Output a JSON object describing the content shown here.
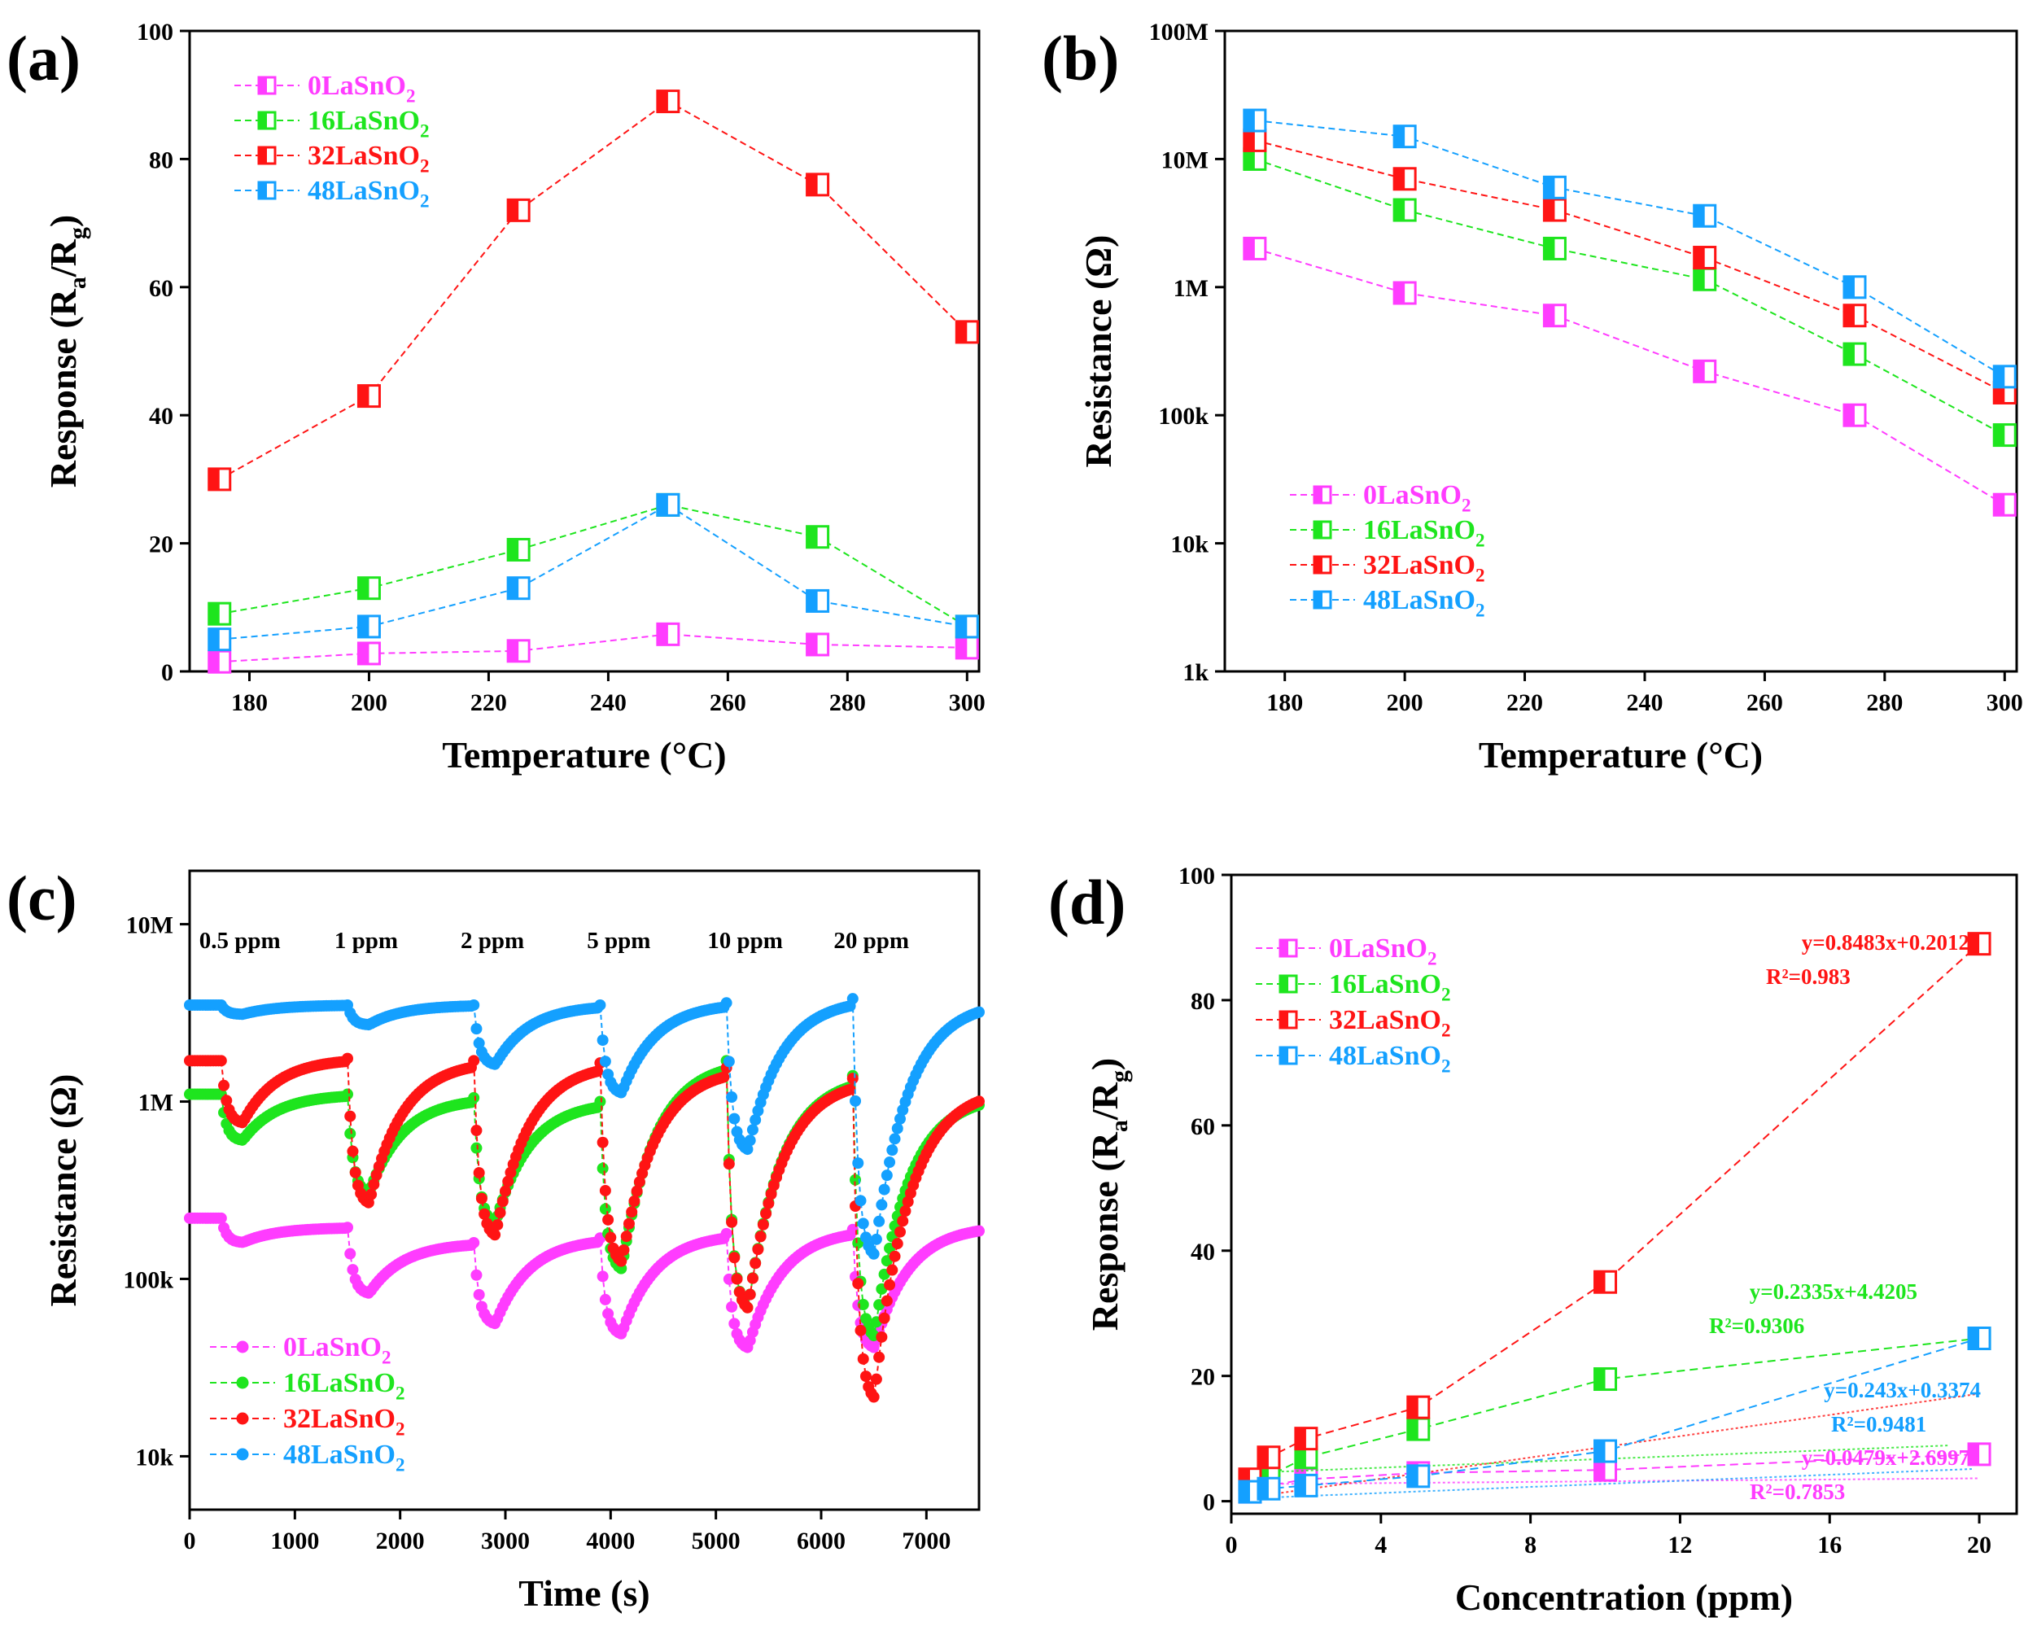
{
  "colors": {
    "p0": "#ff3cff",
    "p16": "#1ee51e",
    "p32": "#ff1414",
    "p48": "#14a0ff",
    "axis": "#000000"
  },
  "series_names": [
    "0LaSnO2",
    "16LaSnO2",
    "32LaSnO2",
    "48LaSnO2"
  ],
  "chart_data": [
    {
      "id": "a",
      "panel_label": "(a)",
      "type": "line",
      "xlabel": "Temperature (°C)",
      "ylabel": "Response (Ra/Rg)",
      "xlim": [
        170,
        302
      ],
      "ylim": [
        0,
        100
      ],
      "xticks": [
        180,
        200,
        220,
        240,
        260,
        280,
        300
      ],
      "yticks": [
        0,
        20,
        40,
        60,
        80,
        100
      ],
      "ytick_labels": [
        "0",
        "20",
        "40",
        "60",
        "80",
        "100"
      ],
      "legend_position": "top-left",
      "x": [
        175,
        200,
        225,
        250,
        275,
        300
      ],
      "series": [
        {
          "name": "0LaSnO2",
          "color": "#ff3cff",
          "values": [
            1.5,
            2.8,
            3.2,
            5.8,
            4.2,
            3.7
          ]
        },
        {
          "name": "16LaSnO2",
          "color": "#1ee51e",
          "values": [
            9,
            13,
            19,
            26,
            21,
            7
          ]
        },
        {
          "name": "32LaSnO2",
          "color": "#ff1414",
          "values": [
            30,
            43,
            72,
            89,
            76,
            53
          ]
        },
        {
          "name": "48LaSnO2",
          "color": "#14a0ff",
          "values": [
            5,
            7,
            13,
            26,
            11,
            7
          ]
        }
      ]
    },
    {
      "id": "b",
      "panel_label": "(b)",
      "type": "line",
      "xlabel": "Temperature (°C)",
      "ylabel": "Resistance (Ω)",
      "yscale": "log",
      "xlim": [
        170,
        302
      ],
      "ylim": [
        1000,
        100000000
      ],
      "xticks": [
        180,
        200,
        220,
        240,
        260,
        280,
        300
      ],
      "yticks": [
        1000,
        10000,
        100000,
        1000000,
        10000000,
        100000000
      ],
      "ytick_labels": [
        "1k",
        "10k",
        "100k",
        "1M",
        "10M",
        "100M"
      ],
      "legend_position": "bottom-left",
      "x": [
        175,
        200,
        225,
        250,
        275,
        300
      ],
      "series": [
        {
          "name": "0LaSnO2",
          "color": "#ff3cff",
          "values": [
            2000000,
            900000,
            600000,
            220000,
            100000,
            20000
          ]
        },
        {
          "name": "16LaSnO2",
          "color": "#1ee51e",
          "values": [
            10000000,
            4000000,
            2000000,
            1150000,
            300000,
            70000
          ]
        },
        {
          "name": "32LaSnO2",
          "color": "#ff1414",
          "values": [
            14000000,
            7000000,
            4000000,
            1700000,
            600000,
            150000
          ]
        },
        {
          "name": "48LaSnO2",
          "color": "#14a0ff",
          "values": [
            20000000,
            15000000,
            6000000,
            3600000,
            1000000,
            200000
          ]
        }
      ]
    },
    {
      "id": "c",
      "panel_label": "(c)",
      "type": "line",
      "xlabel": "Time (s)",
      "ylabel": "Resistance (Ω)",
      "yscale": "log",
      "xlim": [
        0,
        7500
      ],
      "ylim": [
        5000,
        20000000
      ],
      "xticks": [
        0,
        1000,
        2000,
        3000,
        4000,
        5000,
        6000,
        7000
      ],
      "yticks": [
        10000,
        100000,
        1000000,
        10000000
      ],
      "ytick_labels": [
        "10k",
        "100k",
        "1M",
        "10M"
      ],
      "legend_position": "bottom-left",
      "pulses": [
        {
          "label": "0.5 ppm",
          "start": 300,
          "end": 500
        },
        {
          "label": "1 ppm",
          "start": 1500,
          "end": 1700
        },
        {
          "label": "2 ppm",
          "start": 2700,
          "end": 2900
        },
        {
          "label": "5 ppm",
          "start": 3900,
          "end": 4100
        },
        {
          "label": "10 ppm",
          "start": 5100,
          "end": 5300
        },
        {
          "label": "20 ppm",
          "start": 6300,
          "end": 6500
        }
      ],
      "series": [
        {
          "name": "0LaSnO2",
          "color": "#ff3cff",
          "baselines": [
            220000,
            195000,
            160000,
            170000,
            180000,
            190000,
            200000
          ],
          "minima": [
            160000,
            82000,
            55000,
            48000,
            40000,
            40000
          ]
        },
        {
          "name": "16LaSnO2",
          "color": "#1ee51e",
          "baselines": [
            1100000,
            1100000,
            1050000,
            1000000,
            1700000,
            1400000,
            1100000
          ],
          "minima": [
            600000,
            300000,
            200000,
            110000,
            65000,
            45000
          ]
        },
        {
          "name": "32LaSnO2",
          "color": "#ff1414",
          "baselines": [
            1700000,
            1750000,
            1700000,
            1650000,
            1550000,
            1350000,
            1200000
          ],
          "minima": [
            750000,
            260000,
            170000,
            120000,
            65000,
            20000
          ]
        },
        {
          "name": "48LaSnO2",
          "color": "#14a0ff",
          "baselines": [
            3500000,
            3500000,
            3500000,
            3500000,
            3600000,
            3800000,
            3700000
          ],
          "minima": [
            3100000,
            2700000,
            1600000,
            1100000,
            520000,
            130000
          ]
        }
      ]
    },
    {
      "id": "d",
      "panel_label": "(d)",
      "type": "scatter",
      "xlabel": "Concentration (ppm)",
      "ylabel": "Response (Ra/Rg)",
      "xlim": [
        0,
        21
      ],
      "ylim": [
        -2,
        100
      ],
      "xticks": [
        0,
        4,
        8,
        12,
        16,
        20
      ],
      "yticks": [
        0,
        20,
        40,
        60,
        80,
        100
      ],
      "ytick_labels": [
        "0",
        "20",
        "40",
        "60",
        "80",
        "100"
      ],
      "legend_position": "top-left",
      "x": [
        0.5,
        1,
        2,
        5,
        10,
        20
      ],
      "series": [
        {
          "name": "0LaSnO2",
          "color": "#ff3cff",
          "values": [
            1.5,
            2.5,
            3.5,
            4.5,
            5,
            7.5
          ],
          "fit_slope": 0.0479,
          "fit_intercept": 2.6997,
          "equation": "y=0.0479x+2.6997",
          "r2": "R²=0.7853"
        },
        {
          "name": "16LaSnO2",
          "color": "#1ee51e",
          "values": [
            3,
            4,
            7,
            11.5,
            19.5,
            26
          ],
          "fit_slope": 0.2335,
          "fit_intercept": 4.4205,
          "equation": "y=0.2335x+4.4205",
          "r2": "R²=0.9306"
        },
        {
          "name": "32LaSnO2",
          "color": "#ff1414",
          "values": [
            3.5,
            7,
            10,
            15,
            35,
            89
          ],
          "fit_slope": 0.8483,
          "fit_intercept": 0.2012,
          "equation": "y=0.8483x+0.2012",
          "r2": "R²=0.983"
        },
        {
          "name": "48LaSnO2",
          "color": "#14a0ff",
          "values": [
            1.5,
            2,
            2.5,
            4,
            8,
            26
          ],
          "fit_slope": 0.243,
          "fit_intercept": 0.3374,
          "equation": "y=0.243x+0.3374",
          "r2": "R²=0.9481"
        }
      ]
    }
  ]
}
